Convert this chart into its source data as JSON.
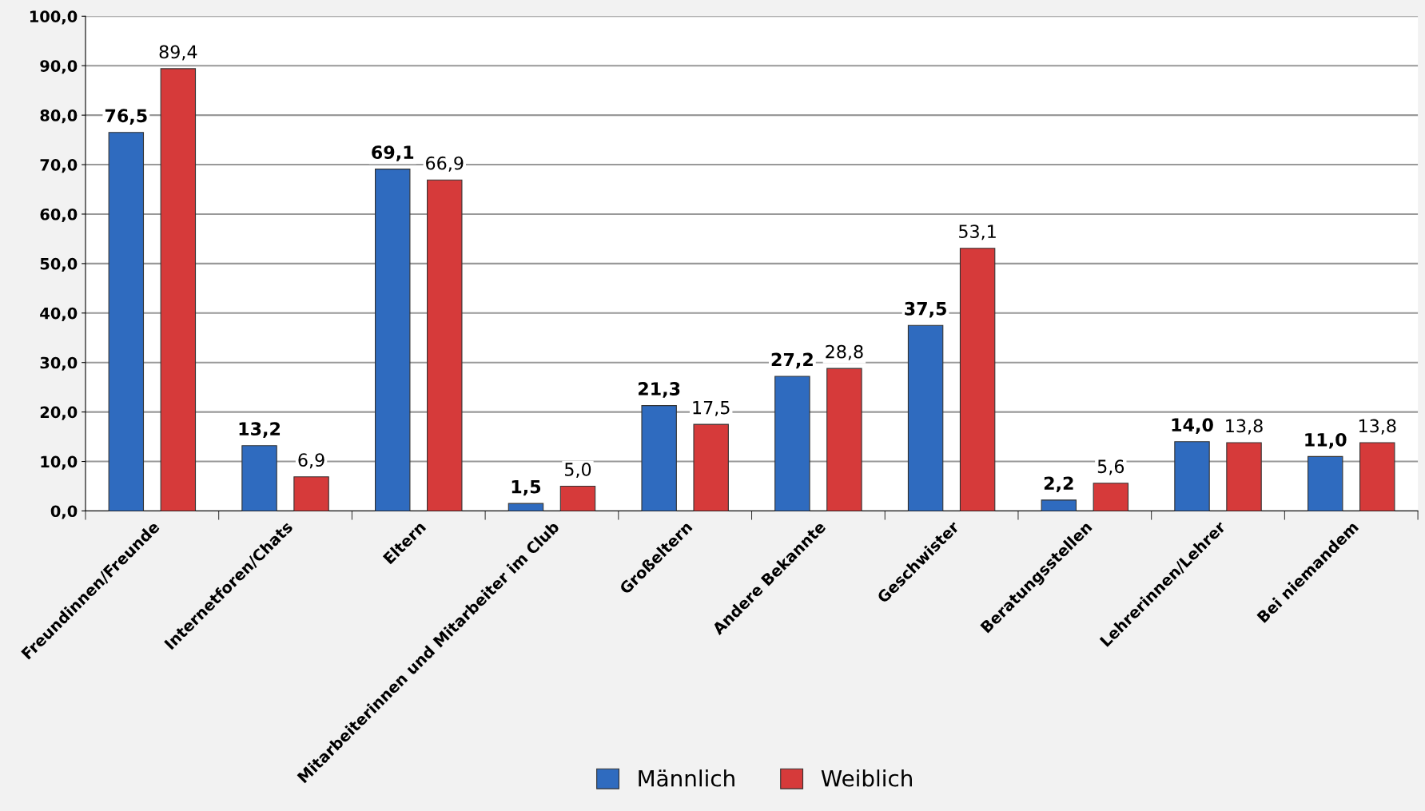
{
  "chart_data": {
    "type": "bar",
    "categories": [
      "Freundinnen/Freunde",
      "Internetforen/Chats",
      "Eltern",
      "Mitarbeiterinnen und Mitarbeiter im Club",
      "Großeltern",
      "Andere Bekannte",
      "Geschwister",
      "Beratungsstellen",
      "Lehrerinnen/Lehrer",
      "Bei niemandem"
    ],
    "series": [
      {
        "name": "Männlich",
        "color": "#2f6bbf",
        "values": [
          76.5,
          13.2,
          69.1,
          1.5,
          21.3,
          27.2,
          37.5,
          2.2,
          14.0,
          11.0
        ],
        "value_labels": [
          "76,5",
          "13,2",
          "69,1",
          "1,5",
          "21,3",
          "27,2",
          "37,5",
          "2,2",
          "14,0",
          "11,0"
        ]
      },
      {
        "name": "Weiblich",
        "color": "#d63a3a",
        "values": [
          89.4,
          6.9,
          66.9,
          5.0,
          17.5,
          28.8,
          53.1,
          5.6,
          13.8,
          13.8
        ],
        "value_labels": [
          "89,4",
          "6,9",
          "66,9",
          "5,0",
          "17,5",
          "28,8",
          "53,1",
          "5,6",
          "13,8",
          "13,8"
        ]
      }
    ],
    "ylim": [
      0,
      100
    ],
    "yticks": [
      {
        "value": 0,
        "label": "0,0"
      },
      {
        "value": 10,
        "label": "10,0"
      },
      {
        "value": 20,
        "label": "20,0"
      },
      {
        "value": 30,
        "label": "30,0"
      },
      {
        "value": 40,
        "label": "40,0"
      },
      {
        "value": 50,
        "label": "50,0"
      },
      {
        "value": 60,
        "label": "60,0"
      },
      {
        "value": 70,
        "label": "70,0"
      },
      {
        "value": 80,
        "label": "80,0"
      },
      {
        "value": 90,
        "label": "90,0"
      },
      {
        "value": 100,
        "label": "100,0"
      }
    ],
    "grid": "y",
    "legend": "bottom"
  }
}
